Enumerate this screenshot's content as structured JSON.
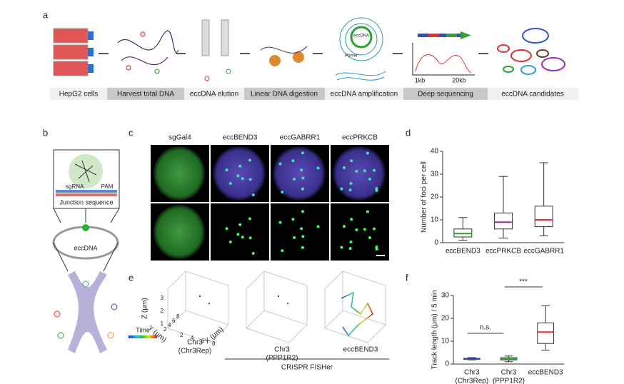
{
  "panel_a": {
    "letter": "a",
    "steps": [
      "HepG2 cells",
      "Harvest total DNA",
      "eccDNA elution",
      "Linear DNA digestion",
      "eccDNA amplification",
      "Deep sequencing",
      "eccDNA  candidates"
    ],
    "inset_labels": {
      "eccdna": "eccDNA",
      "primer": "Primer",
      "x_start": "1kb",
      "x_end": "20kb"
    }
  },
  "panel_b": {
    "letter": "b",
    "sgrna": "sgRNA",
    "pam": "PAM",
    "junction": "Junction sequence",
    "eccdna": "eccDNA"
  },
  "panel_c": {
    "letter": "c",
    "columns": [
      "sgGal4",
      "eccBEND3",
      "eccGABRR1",
      "eccPRKCB"
    ]
  },
  "panel_d": {
    "letter": "d",
    "type": "box",
    "ylabel": "Number of foci per cell",
    "categories": [
      [
        "eccBEND3"
      ],
      [
        "eccPRKCB"
      ],
      [
        "eccGABRR1"
      ]
    ],
    "boxes": [
      {
        "color": "#2ca02c",
        "min": 1,
        "q1": 2.5,
        "median": 4,
        "q3": 6,
        "max": 11
      },
      {
        "color": "#9b2f9b",
        "min": 2,
        "q1": 6,
        "median": 9,
        "q3": 13,
        "max": 29
      },
      {
        "color": "#e0303a",
        "min": 3,
        "q1": 7,
        "median": 10,
        "q3": 16,
        "max": 35
      }
    ],
    "ylim": [
      0,
      40
    ],
    "yticks": [
      0,
      10,
      20,
      30,
      40
    ]
  },
  "panel_e": {
    "letter": "e",
    "axis_z": "Z (μm)",
    "axis_y": "Y (μm)",
    "axis_x": "X (μm)",
    "zticks": [
      1,
      2,
      3
    ],
    "yticks": [
      2,
      4,
      6,
      8
    ],
    "xticks": [
      2,
      4,
      6,
      8
    ],
    "labels": [
      [
        "Chr3",
        "(Chr3Rep)"
      ],
      [
        "Chr3",
        "(PPP1R2)"
      ],
      [
        "eccBEND3"
      ]
    ],
    "colorbar_label": "Time",
    "caption": "CRISPR FISHer"
  },
  "panel_f": {
    "letter": "f",
    "type": "box",
    "ylabel": "Track length (μm) / 5 min",
    "categories": [
      [
        "Chr3",
        "(Chr3Rep)"
      ],
      [
        "Chr3",
        "(PPP1R2)"
      ],
      [
        "eccBEND3"
      ]
    ],
    "boxes": [
      {
        "color": "#2a4fb0",
        "min": 1.8,
        "q1": 2,
        "median": 2.2,
        "q3": 2.5,
        "max": 2.8
      },
      {
        "color": "#2ca02c",
        "min": 1,
        "q1": 1.8,
        "median": 2.2,
        "q3": 2.8,
        "max": 3.5
      },
      {
        "color": "#e0303a",
        "min": 6,
        "q1": 9,
        "median": 14,
        "q3": 18,
        "max": 25.5
      }
    ],
    "ylim": [
      0,
      30
    ],
    "yticks": [
      0,
      10,
      20,
      30
    ],
    "annotations": [
      "n.s.",
      "***"
    ]
  }
}
